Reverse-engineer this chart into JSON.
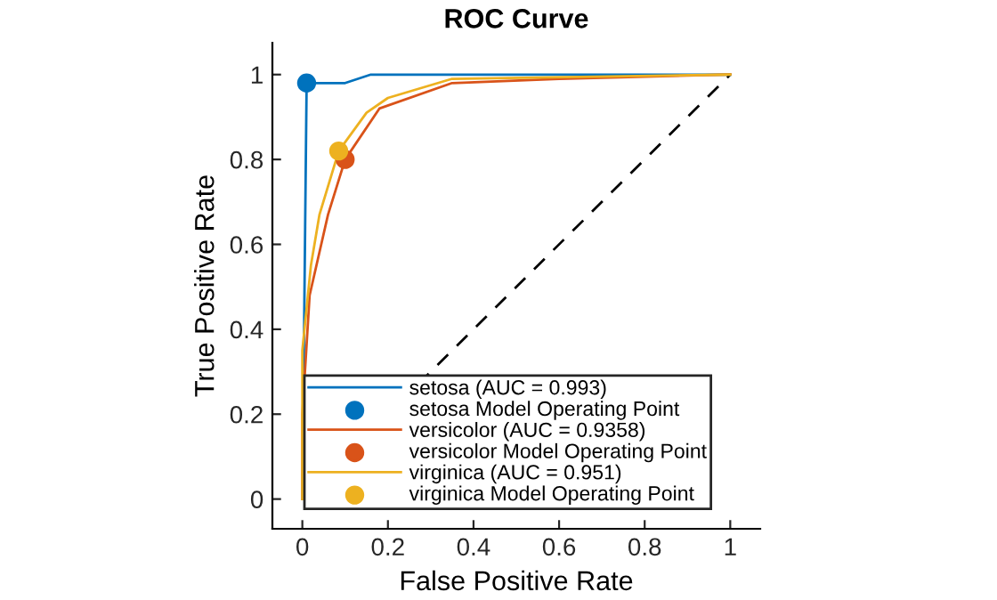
{
  "chart_data": {
    "type": "line",
    "title": "ROC Curve",
    "xlabel": "False Positive Rate",
    "ylabel": "True Positive Rate",
    "xlim": [
      -0.07,
      1.07
    ],
    "ylim": [
      -0.07,
      1.075
    ],
    "xticks": [
      0,
      0.2,
      0.4,
      0.6,
      0.8,
      1
    ],
    "yticks": [
      0,
      0.2,
      0.4,
      0.6,
      0.8,
      1
    ],
    "grid": false,
    "legend": "bottom right",
    "series": [
      {
        "line_style": "dashed",
        "color": "#000000",
        "x": [
          0,
          1
        ],
        "values": [
          0,
          1
        ]
      },
      {
        "name": "setosa (AUC = 0.993)",
        "color": "#0072bd",
        "x": [
          0,
          0.01,
          0.1,
          0.16,
          1
        ],
        "values": [
          0,
          0.98,
          0.98,
          1,
          1
        ]
      },
      {
        "type": "scatter",
        "name": "setosa Model Operating Point",
        "color": "#0072bd",
        "x": [
          0.01
        ],
        "values": [
          0.98
        ]
      },
      {
        "name": "versicolor (AUC = 0.9358)",
        "color": "#d95319",
        "x": [
          0,
          0,
          0.017,
          0.06,
          0.1,
          0.18,
          0.35,
          0.6,
          1
        ],
        "values": [
          0,
          0.2,
          0.48,
          0.67,
          0.8,
          0.92,
          0.98,
          0.99,
          1
        ]
      },
      {
        "type": "scatter",
        "name": "versicolor Model Operating Point",
        "color": "#d95319",
        "x": [
          0.1
        ],
        "values": [
          0.8
        ]
      },
      {
        "name": "virginica (AUC = 0.951)",
        "color": "#edb120",
        "x": [
          0,
          0,
          0.02,
          0.04,
          0.085,
          0.15,
          0.2,
          0.35,
          1
        ],
        "values": [
          0,
          0.35,
          0.55,
          0.67,
          0.82,
          0.91,
          0.945,
          0.99,
          1
        ]
      },
      {
        "type": "scatter",
        "name": "virginica Model Operating Point",
        "color": "#edb120",
        "x": [
          0.085
        ],
        "values": [
          0.82
        ]
      }
    ]
  }
}
